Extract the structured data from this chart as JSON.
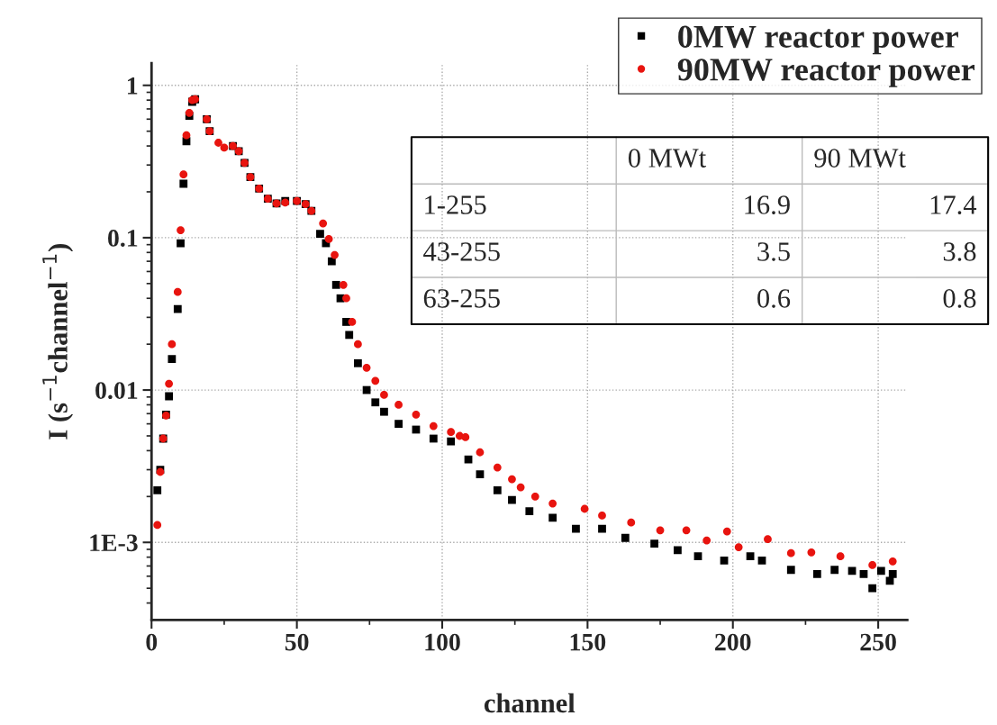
{
  "chart_data": {
    "type": "scatter",
    "xlabel": "channel",
    "ylabel": "I (s$^{−1}$channel$^{−1}$)",
    "log": "y",
    "grid": true,
    "legend": "top right",
    "xlim": [
      0,
      260
    ],
    "xticks": [
      0,
      50,
      100,
      150,
      200,
      250
    ],
    "ylim": [
      0.00031,
      1.4
    ],
    "yticks": [
      {
        "value": 1,
        "label": "1"
      },
      {
        "value": 0.1,
        "label": "0.1"
      },
      {
        "value": 0.01,
        "label": "0.01"
      },
      {
        "value": 0.001,
        "label": "1E-3"
      }
    ],
    "annotations": [
      "0 MWt",
      "90 MWt",
      "1-255",
      "16.9",
      "17.4",
      "43-255",
      "3.5",
      "3.8",
      "63-255",
      "0.6",
      "0.8"
    ],
    "series": [
      {
        "name": "0MW reactor power",
        "color": "#000000",
        "marker": "square",
        "x": [
          2,
          3,
          4,
          5,
          6,
          7,
          9,
          10,
          11,
          12,
          13,
          14,
          15,
          19,
          20,
          23,
          25,
          28,
          30,
          32,
          34,
          37,
          40,
          43,
          46,
          50,
          53,
          55,
          58,
          60,
          62,
          63.5,
          65,
          67,
          68,
          71,
          74,
          77,
          80,
          85,
          91,
          97,
          103,
          109,
          113,
          119,
          124,
          130,
          138,
          146,
          155,
          163,
          173,
          181,
          188,
          197,
          206,
          210,
          220,
          229,
          235,
          241,
          245,
          248,
          251,
          254,
          255
        ],
        "values": [
          0.0022,
          0.003,
          0.0048,
          0.0069,
          0.0091,
          0.016,
          0.034,
          0.092,
          0.226,
          0.43,
          0.63,
          0.78,
          0.81,
          0.6,
          0.5,
          null,
          null,
          0.4,
          0.37,
          0.31,
          0.25,
          0.21,
          0.18,
          0.168,
          0.174,
          0.174,
          0.166,
          0.15,
          0.106,
          0.092,
          0.07,
          0.049,
          0.04,
          0.028,
          0.023,
          0.015,
          0.01,
          0.0083,
          0.0072,
          0.006,
          0.0055,
          0.0048,
          0.0046,
          0.0035,
          0.0028,
          0.0022,
          0.0019,
          0.0016,
          0.00145,
          0.00123,
          0.00123,
          0.00107,
          0.00098,
          0.00089,
          0.00081,
          0.00076,
          0.00081,
          0.00076,
          0.00066,
          0.00062,
          0.00066,
          0.00065,
          0.00062,
          0.0005,
          0.00065,
          0.00056,
          0.00062
        ]
      },
      {
        "name": "90MW reactor power",
        "color": "#e8140f",
        "marker": "circle",
        "x": [
          2,
          3,
          4,
          5,
          6,
          7,
          9,
          10,
          11,
          12,
          13,
          14,
          15,
          19,
          20,
          23,
          25,
          28,
          30,
          32,
          34,
          37,
          40,
          43,
          46,
          50,
          53,
          55,
          59,
          61,
          63,
          66,
          67,
          69,
          71,
          74,
          77,
          80,
          85,
          91,
          97,
          103,
          106,
          108,
          113,
          119,
          124,
          127,
          132,
          138,
          149,
          155,
          165,
          175,
          184,
          191,
          198,
          202,
          212,
          220,
          227,
          237,
          248,
          255
        ],
        "values": [
          0.0013,
          0.0029,
          0.0048,
          0.0068,
          0.011,
          0.02,
          0.044,
          0.112,
          0.26,
          0.47,
          0.66,
          0.8,
          0.81,
          0.6,
          0.5,
          0.42,
          0.39,
          0.4,
          0.37,
          0.31,
          0.25,
          0.21,
          0.18,
          0.168,
          0.17,
          0.174,
          0.166,
          0.15,
          0.124,
          0.098,
          0.077,
          0.049,
          0.04,
          0.028,
          0.02,
          0.014,
          0.0115,
          0.0093,
          0.008,
          0.0069,
          0.0058,
          0.0053,
          0.005,
          0.0049,
          0.0039,
          0.0031,
          0.0026,
          0.0023,
          0.002,
          0.0018,
          0.00166,
          0.0015,
          0.00135,
          0.0012,
          0.0012,
          0.00103,
          0.00118,
          0.00093,
          0.00105,
          0.00085,
          0.00086,
          0.00081,
          0.00071,
          0.00075
        ]
      }
    ]
  }
}
